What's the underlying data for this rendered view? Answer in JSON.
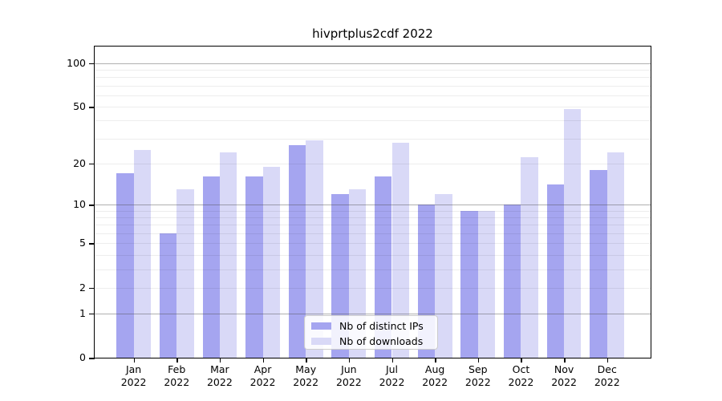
{
  "title": "hivprtplus2cdf 2022",
  "colors": {
    "distinct_ips_bar": "#a5a5f0",
    "downloads_bar": "#d9d9f7",
    "major_gridline": "#b0b0b0",
    "minor_gridline": "#ededed",
    "axis": "#000000",
    "legend_border": "#cccccc",
    "background": "#ffffff"
  },
  "legend": {
    "items": [
      {
        "label": "Nb of distinct IPs",
        "color": "#a5a5f0"
      },
      {
        "label": "Nb of downloads",
        "color": "#d9d9f7"
      }
    ]
  },
  "chart_data": {
    "type": "bar",
    "title": "hivprtplus2cdf 2022",
    "categories": [
      "Jan",
      "Feb",
      "Mar",
      "Apr",
      "May",
      "Jun",
      "Jul",
      "Aug",
      "Sep",
      "Oct",
      "Nov",
      "Dec"
    ],
    "x_year_label": "2022",
    "series": [
      {
        "name": "Nb of distinct IPs",
        "color": "#a5a5f0",
        "values": [
          17,
          6,
          16,
          16,
          27,
          12,
          16,
          10,
          9,
          10,
          14,
          18
        ]
      },
      {
        "name": "Nb of downloads",
        "color": "#d9d9f7",
        "values": [
          25,
          13,
          24,
          19,
          29,
          13,
          28,
          12,
          9,
          22,
          48,
          24
        ]
      }
    ],
    "xlabel": "",
    "ylabel": "",
    "y_scale": "log10(value+1)",
    "y_ticks_labeled": [
      0,
      1,
      2,
      5,
      10,
      20,
      50,
      100
    ],
    "y_gridlines_major": [
      1,
      10,
      100
    ],
    "y_gridlines_minor": [
      2,
      3,
      4,
      5,
      6,
      7,
      8,
      9,
      20,
      30,
      40,
      50,
      60,
      70,
      80,
      90
    ],
    "ylim": [
      0,
      130
    ],
    "grid": "on",
    "gridlines_above_bars": true,
    "legend_position": "lower center"
  }
}
